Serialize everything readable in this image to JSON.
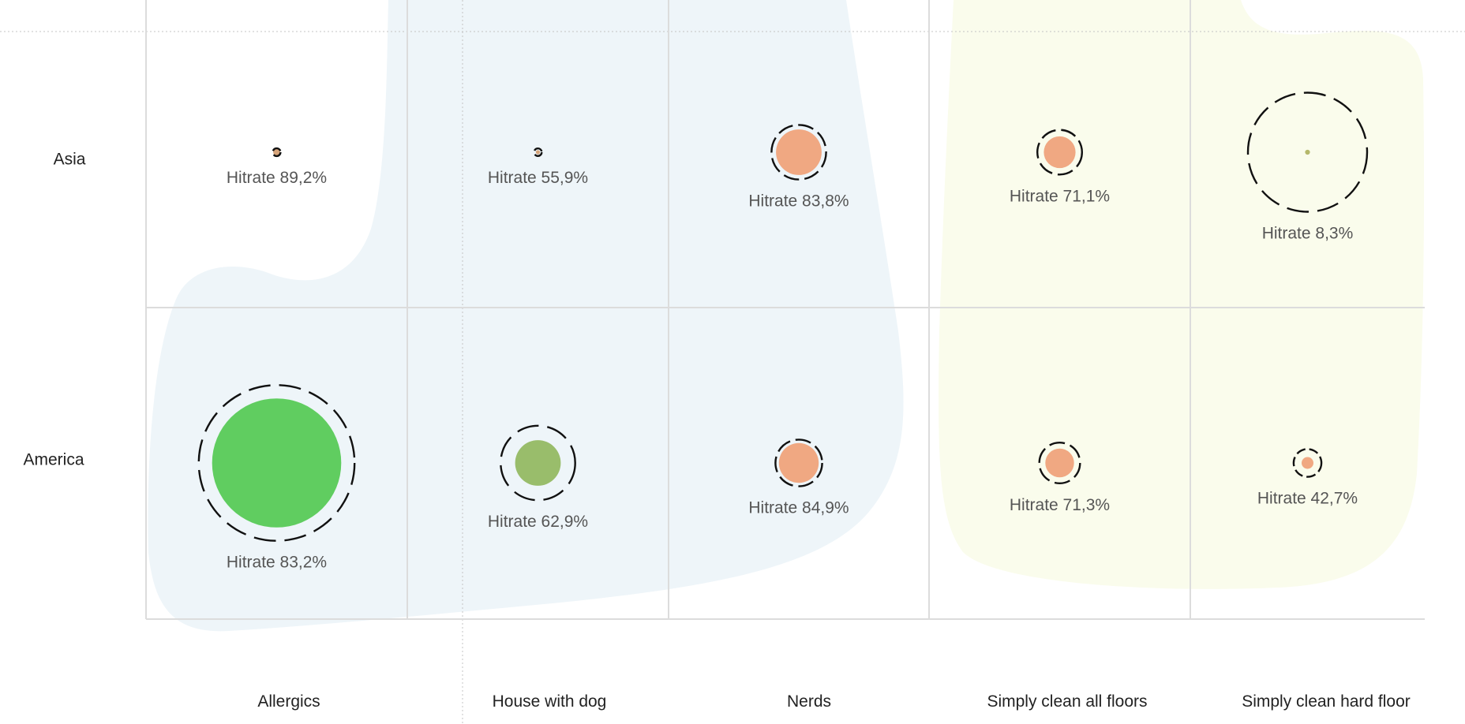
{
  "chart_data": {
    "type": "bubble-matrix",
    "rows": [
      "Asia",
      "America"
    ],
    "columns": [
      "Allergics",
      "House with dog",
      "Nerds",
      "Simply clean all floors",
      "Simply clean hard floor"
    ],
    "label_prefix": "Hitrate",
    "cells": [
      {
        "row": "Asia",
        "column": "Allergics",
        "hitrate": 89.2,
        "label": "89,2%",
        "inner": 0.035,
        "outer": 0.039,
        "color": "#d6a47a"
      },
      {
        "row": "Asia",
        "column": "House with dog",
        "hitrate": 55.9,
        "label": "55,9%",
        "inner": 0.021,
        "outer": 0.038,
        "color": "#d6a47a"
      },
      {
        "row": "Asia",
        "column": "Nerds",
        "hitrate": 83.8,
        "label": "83,8%",
        "inner": 0.23,
        "outer": 0.275,
        "color": "#f0a882"
      },
      {
        "row": "Asia",
        "column": "Simply clean all floors",
        "hitrate": 71.1,
        "label": "71,1%",
        "inner": 0.16,
        "outer": 0.225,
        "color": "#f0a882"
      },
      {
        "row": "Asia",
        "column": "Simply clean hard floor",
        "hitrate": 8.3,
        "label": "8,3%",
        "inner": 0.025,
        "outer": 0.6,
        "color": "#b5b86a"
      },
      {
        "row": "America",
        "column": "Allergics",
        "hitrate": 83.2,
        "label": "83,2%",
        "inner": 0.65,
        "outer": 0.785,
        "color": "#60cd60"
      },
      {
        "row": "America",
        "column": "House with dog",
        "hitrate": 62.9,
        "label": "62,9%",
        "inner": 0.23,
        "outer": 0.375,
        "color": "#99bd6b"
      },
      {
        "row": "America",
        "column": "Nerds",
        "hitrate": 84.9,
        "label": "84,9%",
        "inner": 0.2,
        "outer": 0.235,
        "color": "#f0a882"
      },
      {
        "row": "America",
        "column": "Simply clean all floors",
        "hitrate": 71.3,
        "label": "71,3%",
        "inner": 0.145,
        "outer": 0.205,
        "color": "#f0a882"
      },
      {
        "row": "America",
        "column": "Simply clean hard floor",
        "hitrate": 42.7,
        "label": "42,7%",
        "inner": 0.06,
        "outer": 0.14,
        "color": "#f0a882"
      }
    ],
    "groups": [
      {
        "columns": [
          "Allergics",
          "House with dog",
          "Nerds"
        ],
        "color": "#eef5f9"
      },
      {
        "columns": [
          "Simply clean all floors",
          "Simply clean hard floor"
        ],
        "color": "#fafcec"
      }
    ],
    "grid": true
  }
}
